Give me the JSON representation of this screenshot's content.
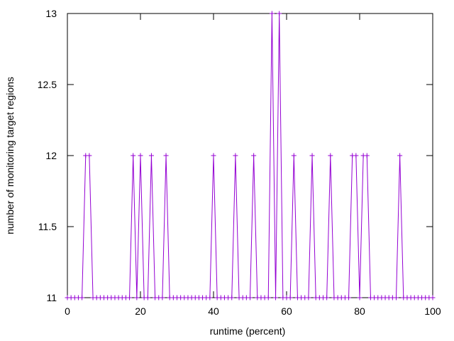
{
  "chart_data": {
    "type": "line",
    "title": "",
    "xlabel": "runtime (percent)",
    "ylabel": "number of monitoring target regions",
    "xlim": [
      0,
      100
    ],
    "ylim": [
      11,
      13
    ],
    "xticks": [
      0,
      20,
      40,
      60,
      80,
      100
    ],
    "yticks": [
      11,
      11.5,
      12,
      12.5,
      13
    ],
    "ytick_labels": [
      "11",
      "11.5",
      "12",
      "12.5",
      "13"
    ],
    "grid": false,
    "legend": "none",
    "marker": "plus",
    "series": [
      {
        "color": "#9400d3",
        "x": [
          0,
          1,
          2,
          3,
          4,
          5,
          6,
          7,
          8,
          9,
          10,
          11,
          12,
          13,
          14,
          15,
          16,
          17,
          18,
          19,
          20,
          21,
          22,
          23,
          24,
          25,
          26,
          27,
          28,
          29,
          30,
          31,
          32,
          33,
          34,
          35,
          36,
          37,
          38,
          39,
          40,
          41,
          42,
          43,
          44,
          45,
          46,
          47,
          48,
          49,
          50,
          51,
          52,
          53,
          54,
          55,
          56,
          57,
          58,
          59,
          60,
          61,
          62,
          63,
          64,
          65,
          66,
          67,
          68,
          69,
          70,
          71,
          72,
          73,
          74,
          75,
          76,
          77,
          78,
          79,
          80,
          81,
          82,
          83,
          84,
          85,
          86,
          87,
          88,
          89,
          90,
          91,
          92,
          93,
          94,
          95,
          96,
          97,
          98,
          99,
          100
        ],
        "y": [
          11,
          11,
          11,
          11,
          11,
          12,
          12,
          11,
          11,
          11,
          11,
          11,
          11,
          11,
          11,
          11,
          11,
          11,
          12,
          11,
          12,
          11,
          11,
          12,
          11,
          11,
          11,
          12,
          11,
          11,
          11,
          11,
          11,
          11,
          11,
          11,
          11,
          11,
          11,
          11,
          12,
          11,
          11,
          11,
          11,
          11,
          12,
          11,
          11,
          11,
          11,
          12,
          11,
          11,
          11,
          11,
          13,
          11,
          13,
          11,
          11,
          11,
          12,
          11,
          11,
          11,
          11,
          12,
          11,
          11,
          11,
          11,
          12,
          11,
          11,
          11,
          11,
          11,
          12,
          12,
          11,
          12,
          12,
          11,
          11,
          11,
          11,
          11,
          11,
          11,
          11,
          12,
          11,
          11,
          11,
          11,
          11,
          11,
          11,
          11,
          11
        ]
      }
    ]
  }
}
